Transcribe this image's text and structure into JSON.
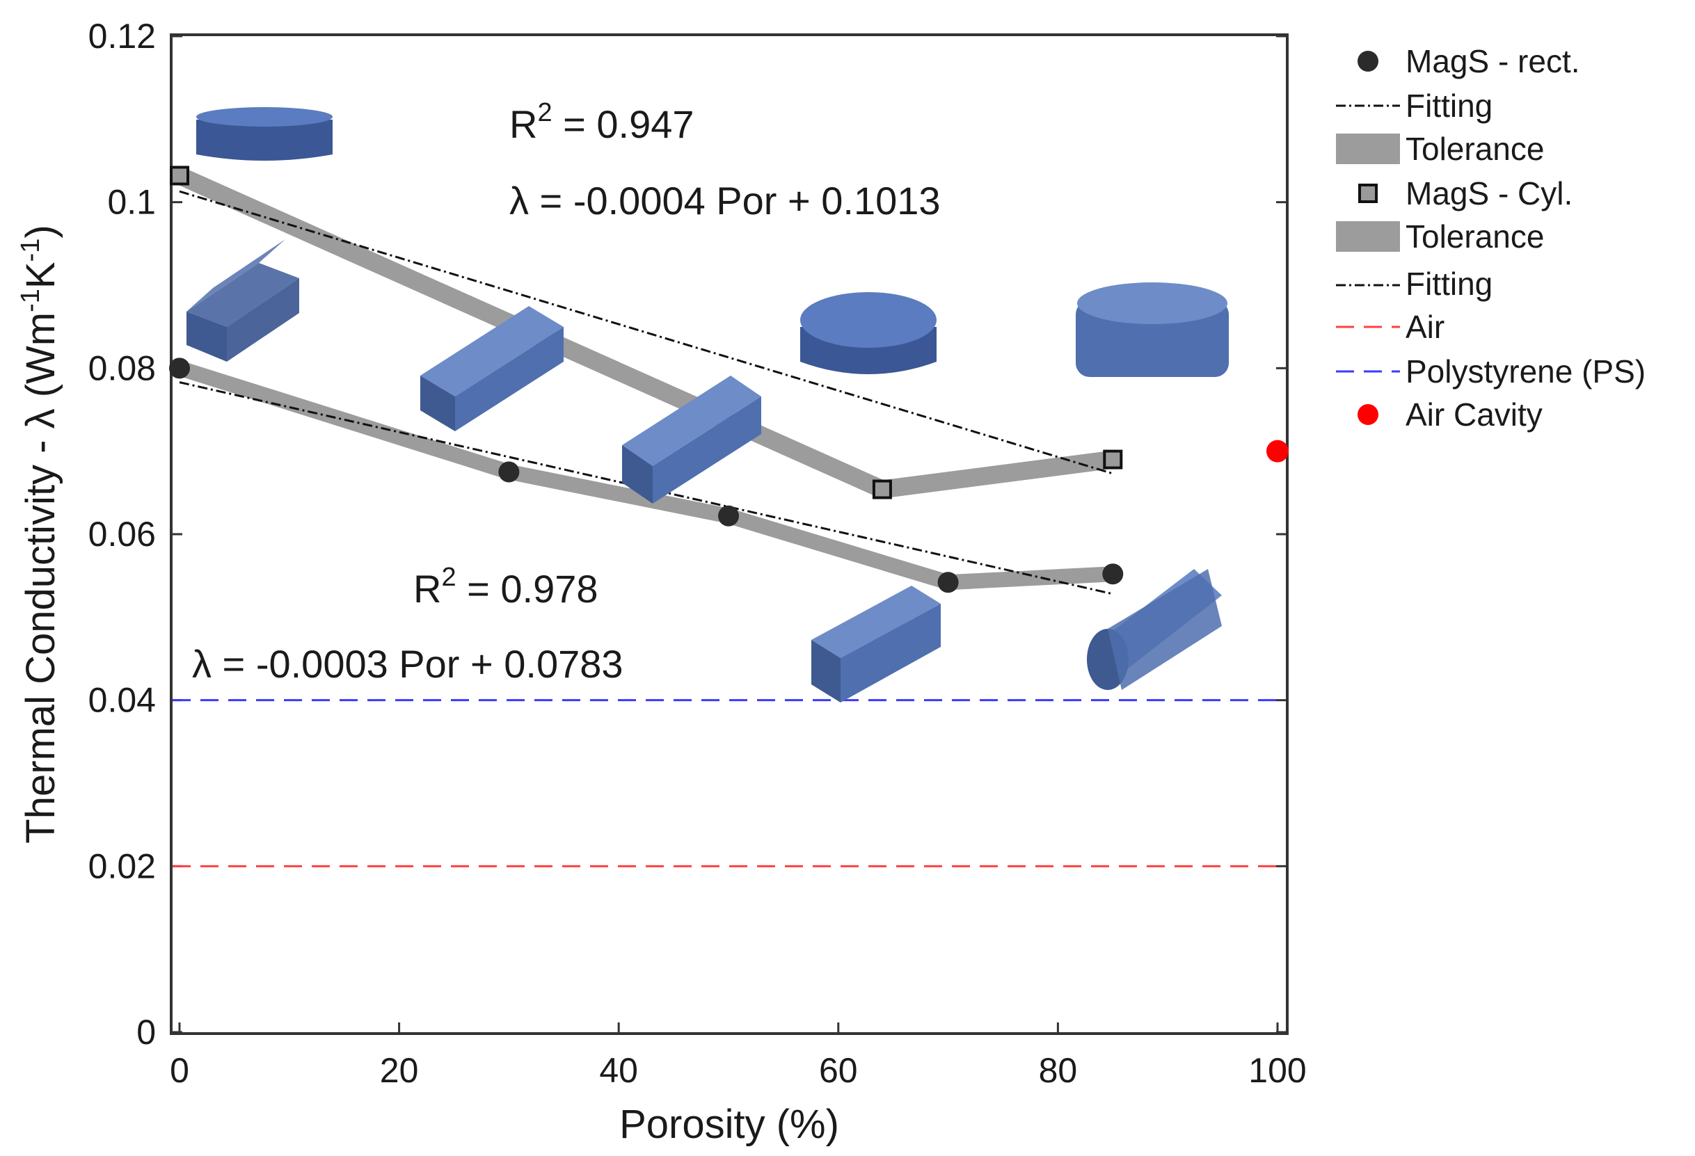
{
  "chart_data": {
    "type": "line",
    "title": "",
    "xlabel": "Porosity (%)",
    "ylabel_parts": {
      "main": "Thermal Conductivity - λ (Wm",
      "exp1": "-1",
      "mid": "K",
      "exp2": "-1",
      "end": ")"
    },
    "xlim": [
      0,
      100
    ],
    "ylim": [
      0,
      0.12
    ],
    "xticks": [
      "0",
      "20",
      "40",
      "60",
      "80",
      "100"
    ],
    "yticks": [
      "0",
      "0.02",
      "0.04",
      "0.06",
      "0.08",
      "0.1",
      "0.12"
    ],
    "xtick_values": [
      0,
      20,
      40,
      60,
      80,
      100
    ],
    "ytick_values": [
      0,
      0.02,
      0.04,
      0.06,
      0.08,
      0.1,
      0.12
    ],
    "grid": false,
    "series": [
      {
        "name": "MagS - rect.",
        "marker": "circle",
        "color": "#2b2b2b",
        "x": [
          0,
          30,
          50,
          70,
          85
        ],
        "y": [
          0.08,
          0.0675,
          0.0622,
          0.0542,
          0.0552
        ]
      },
      {
        "name": "MagS - Cyl.",
        "marker": "square",
        "color": "#9a9a9a",
        "x": [
          0,
          64,
          85
        ],
        "y": [
          0.1032,
          0.0654,
          0.069
        ]
      },
      {
        "name": "Air Cavity",
        "marker": "circle",
        "color": "#ff0000",
        "x": [
          100
        ],
        "y": [
          0.07
        ]
      }
    ],
    "fits": [
      {
        "name": "Fitting",
        "slope": -0.0003,
        "intercept": 0.0783,
        "x_range": [
          0,
          85
        ],
        "r2": "R",
        "r2_value": "2",
        "r2_text": " = 0.978",
        "equation": "λ = -0.0003 Por + 0.0783"
      },
      {
        "name": "Fitting",
        "slope": -0.0004,
        "intercept": 0.1013,
        "x_range": [
          0,
          85
        ],
        "r2": "R",
        "r2_value": "2",
        "r2_text": " = 0.947",
        "equation": "λ = -0.0004 Por + 0.1013"
      }
    ],
    "reference_lines": [
      {
        "name": "Air",
        "y": 0.02,
        "color": "#ff4040"
      },
      {
        "name": "Polystyrene (PS)",
        "y": 0.04,
        "color": "#3a3aff"
      }
    ],
    "legend": {
      "placement": "right",
      "entries": [
        "MagS - rect.",
        "Fitting",
        "Tolerance",
        "MagS - Cyl.",
        "Tolerance",
        "Fitting",
        "Air",
        "Polystyrene (PS)",
        "Air Cavity"
      ]
    },
    "colors": {
      "tolerance": "#9c9c9c",
      "sample_blue": "#4f6fae",
      "sample_blue_dark": "#3b5795",
      "axis": "#333333"
    }
  }
}
